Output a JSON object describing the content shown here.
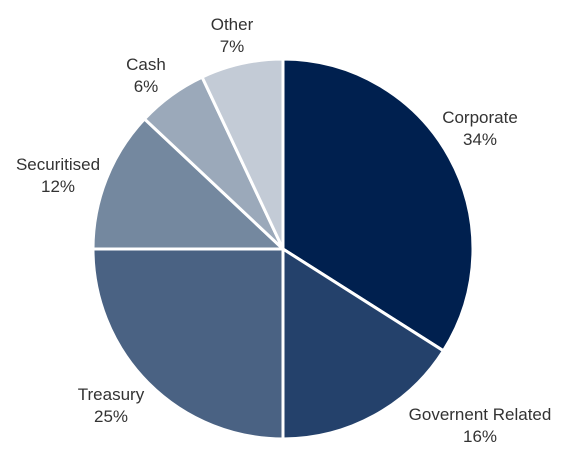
{
  "chart_data": {
    "type": "pie",
    "title": "",
    "slices": [
      {
        "name": "Corporate",
        "value": 34,
        "pct_label": "34%",
        "color": "#00204f"
      },
      {
        "name": "Government Related",
        "value": 16,
        "display_name": "Governent Related",
        "pct_label": "16%",
        "color": "#24416b"
      },
      {
        "name": "Treasury",
        "value": 25,
        "pct_label": "25%",
        "color": "#4a6283"
      },
      {
        "name": "Securitised",
        "value": 12,
        "pct_label": "12%",
        "color": "#74889f"
      },
      {
        "name": "Cash",
        "value": 6,
        "pct_label": "6%",
        "color": "#9ba9ba"
      },
      {
        "name": "Other",
        "value": 7,
        "pct_label": "7%",
        "color": "#c3cbd6"
      }
    ],
    "start_angle": "12 o'clock",
    "direction": "clockwise",
    "legend": "none"
  }
}
